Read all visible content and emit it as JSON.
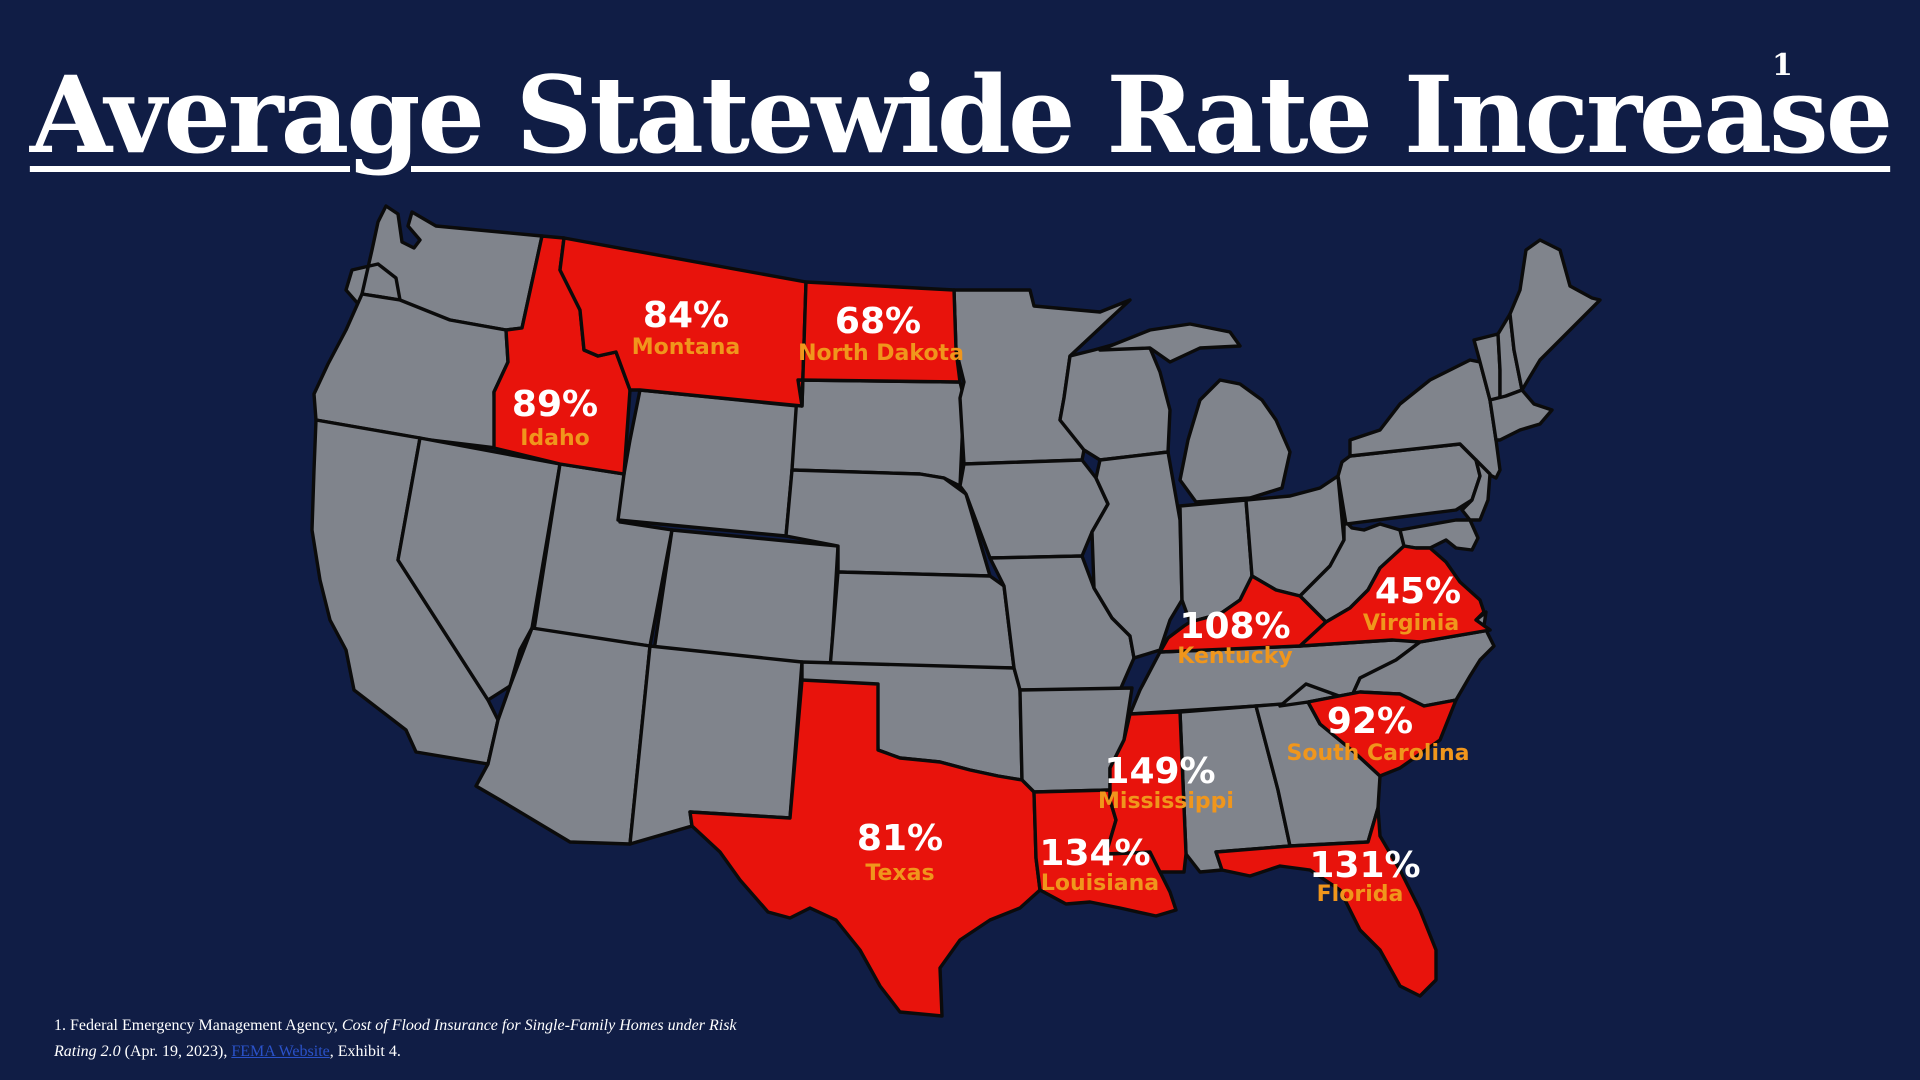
{
  "title": "Average Statewide Rate Increase",
  "title_footnote_mark": "1",
  "colors": {
    "background": "#101d45",
    "state_default": "#80848c",
    "state_highlight": "#e8130c",
    "percent_label": "#ffffff",
    "state_label": "#f0961c",
    "border": "#0b0b0b"
  },
  "highlighted_states": [
    {
      "name": "Montana",
      "percent": "84%"
    },
    {
      "name": "North Dakota",
      "percent": "68%"
    },
    {
      "name": "Idaho",
      "percent": "89%"
    },
    {
      "name": "Texas",
      "percent": "81%"
    },
    {
      "name": "Louisiana",
      "percent": "134%"
    },
    {
      "name": "Mississippi",
      "percent": "149%"
    },
    {
      "name": "Kentucky",
      "percent": "108%"
    },
    {
      "name": "Virginia",
      "percent": "45%"
    },
    {
      "name": "South Carolina",
      "percent": "92%"
    },
    {
      "name": "Florida",
      "percent": "131%"
    }
  ],
  "footnote": {
    "number": "1.",
    "agency": "Federal Emergency Management Agency, ",
    "doc_title": "Cost of Flood Insurance for Single-Family Homes under Risk Rating 2.0",
    "date": " (Apr. 19, 2023), ",
    "link_text": "FEMA Website",
    "suffix": ", Exhibit 4."
  }
}
